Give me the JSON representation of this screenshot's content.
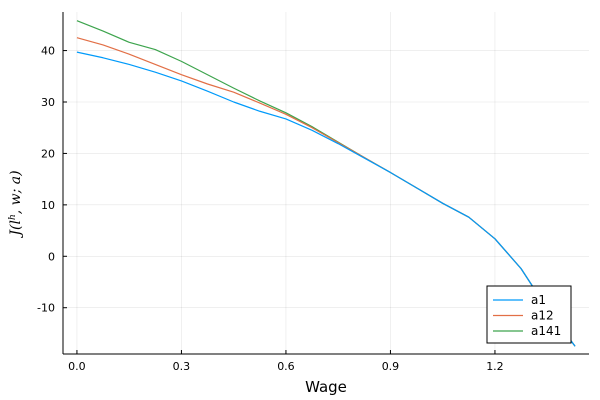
{
  "chart_data": {
    "type": "line",
    "xlabel": "Wage",
    "ylabel": "J(l^h, w; a)",
    "ylabel_parts": {
      "base": "J(",
      "var": "l",
      "sup": "h",
      "rest": ", w; a)"
    },
    "xlim": [
      -0.04,
      1.47
    ],
    "ylim": [
      -19,
      47.5
    ],
    "xticks": [
      0.0,
      0.3,
      0.6,
      0.9,
      1.2
    ],
    "xtick_labels": [
      "0.0",
      "0.3",
      "0.6",
      "0.9",
      "1.2"
    ],
    "yticks": [
      -10,
      0,
      10,
      20,
      30,
      40
    ],
    "ytick_labels": [
      "-10",
      "0",
      "10",
      "20",
      "30",
      "40"
    ],
    "grid": true,
    "legend_position": "bottom-right",
    "series": [
      {
        "name": "a1",
        "color": "#009AFA",
        "x": [
          0.0,
          0.075,
          0.15,
          0.225,
          0.3,
          0.375,
          0.45,
          0.525,
          0.6,
          0.675,
          0.75,
          0.825,
          0.9,
          0.975,
          1.05,
          1.125,
          1.2,
          1.275,
          1.35,
          1.43
        ],
        "y": [
          39.7,
          38.6,
          37.3,
          35.8,
          34.1,
          32.1,
          30.0,
          28.2,
          26.7,
          24.5,
          21.9,
          19.1,
          16.3,
          13.3,
          10.3,
          7.6,
          3.4,
          -2.4,
          -10.2,
          -17.5
        ]
      },
      {
        "name": "a12",
        "color": "#E26F46",
        "x": [
          0.0,
          0.075,
          0.15,
          0.225,
          0.3,
          0.375,
          0.45,
          0.525,
          0.6,
          0.675,
          0.75,
          0.825,
          0.9,
          0.975,
          1.05,
          1.125,
          1.2,
          1.275,
          1.35,
          1.43
        ],
        "y": [
          42.5,
          41.1,
          39.3,
          37.3,
          35.3,
          33.5,
          31.9,
          29.8,
          27.6,
          25.0,
          22.1,
          19.2,
          16.3,
          13.3,
          10.3,
          7.6,
          3.4,
          -2.4,
          -10.2,
          -17.5
        ]
      },
      {
        "name": "a141",
        "color": "#3DA44D",
        "x": [
          0.0,
          0.075,
          0.15,
          0.225,
          0.3,
          0.375,
          0.45,
          0.525,
          0.6,
          0.675,
          0.75,
          0.825,
          0.9,
          0.975,
          1.05,
          1.125,
          1.2,
          1.275,
          1.35,
          1.43
        ],
        "y": [
          45.8,
          43.8,
          41.6,
          40.2,
          37.9,
          35.3,
          32.7,
          30.2,
          27.9,
          25.2,
          22.2,
          19.2,
          16.3,
          13.3,
          10.3,
          7.6,
          3.4,
          -2.4,
          -10.2,
          -17.5
        ]
      }
    ]
  }
}
